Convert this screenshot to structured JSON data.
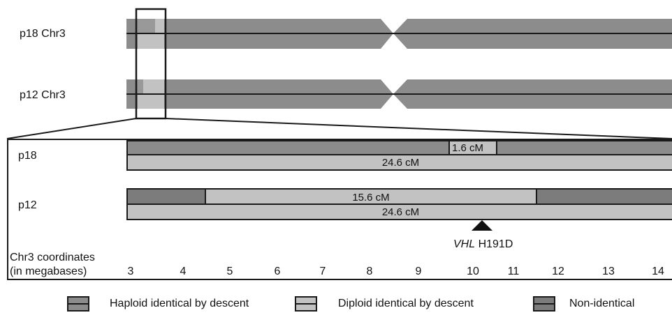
{
  "colors": {
    "haploid": "#8c8c8c",
    "diploid": "#c2c2c2",
    "non_identical": "#7c7c7c",
    "dark": "#1a1a1a"
  },
  "overview": {
    "rows": [
      {
        "label": "p18 Chr3"
      },
      {
        "label": "p12 Chr3"
      }
    ]
  },
  "detail": {
    "p18": {
      "label": "p18",
      "top_bar_label": "1.6 cM",
      "bottom_bar_label": "24.6 cM"
    },
    "p12": {
      "label": "p12",
      "top_bar_label": "15.6 cM",
      "bottom_bar_label": "24.6 cM"
    },
    "marker": {
      "gene": "VHL",
      "variant": "H191D"
    }
  },
  "axis": {
    "title_line1": "Chr3 coordinates",
    "title_line2": "(in megabases)",
    "ticks": [
      "3",
      "4",
      "5",
      "6",
      "7",
      "8",
      "9",
      "10",
      "11",
      "12",
      "13",
      "14"
    ]
  },
  "legend": [
    {
      "label": "Haploid identical by descent",
      "color": "#8c8c8c"
    },
    {
      "label": "Diploid identical by descent",
      "color": "#c2c2c2"
    },
    {
      "label": "Non-identical",
      "color": "#7c7c7c"
    }
  ]
}
